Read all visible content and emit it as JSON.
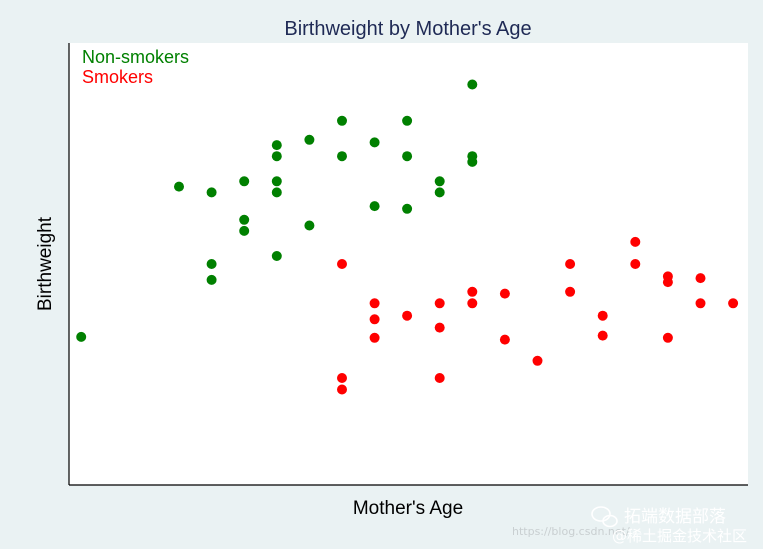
{
  "chart_data": {
    "type": "scatter",
    "title": "Birthweight by Mother's Age",
    "xlabel": "Mother's Age",
    "ylabel": "Birthweight",
    "xlim": [
      0,
      100
    ],
    "ylim": [
      0,
      100
    ],
    "grid": false,
    "legend_position": "top-left",
    "series": [
      {
        "name": "Non-smokers",
        "color": "#008000",
        "points": [
          [
            1.8,
            33.5
          ],
          [
            16.2,
            67.5
          ],
          [
            21.0,
            66.2
          ],
          [
            21.0,
            50.0
          ],
          [
            21.0,
            46.4
          ],
          [
            25.8,
            68.7
          ],
          [
            25.8,
            60.0
          ],
          [
            25.8,
            57.5
          ],
          [
            30.6,
            76.9
          ],
          [
            30.6,
            74.4
          ],
          [
            30.6,
            68.7
          ],
          [
            30.6,
            66.2
          ],
          [
            30.6,
            51.8
          ],
          [
            35.4,
            78.1
          ],
          [
            35.4,
            58.7
          ],
          [
            40.2,
            82.4
          ],
          [
            40.2,
            74.4
          ],
          [
            45.0,
            77.5
          ],
          [
            45.0,
            63.1
          ],
          [
            49.8,
            82.4
          ],
          [
            49.8,
            74.4
          ],
          [
            49.8,
            62.5
          ],
          [
            54.6,
            68.7
          ],
          [
            54.6,
            66.2
          ],
          [
            59.4,
            90.6
          ],
          [
            59.4,
            74.4
          ],
          [
            59.4,
            73.1
          ]
        ]
      },
      {
        "name": "Smokers",
        "color": "#ff0000",
        "points": [
          [
            40.2,
            50.0
          ],
          [
            40.2,
            24.2
          ],
          [
            40.2,
            21.6
          ],
          [
            45.0,
            41.1
          ],
          [
            45.0,
            37.5
          ],
          [
            45.0,
            33.3
          ],
          [
            49.8,
            38.3
          ],
          [
            54.6,
            41.1
          ],
          [
            54.6,
            35.6
          ],
          [
            54.6,
            24.2
          ],
          [
            59.4,
            43.7
          ],
          [
            59.4,
            41.1
          ],
          [
            64.2,
            43.3
          ],
          [
            64.2,
            32.9
          ],
          [
            69.0,
            28.1
          ],
          [
            73.8,
            50.0
          ],
          [
            73.8,
            43.7
          ],
          [
            78.6,
            38.3
          ],
          [
            78.6,
            33.8
          ],
          [
            83.4,
            55.0
          ],
          [
            83.4,
            50.0
          ],
          [
            88.2,
            47.2
          ],
          [
            88.2,
            45.9
          ],
          [
            88.2,
            33.3
          ],
          [
            93.0,
            46.8
          ],
          [
            93.0,
            41.1
          ],
          [
            97.8,
            41.1
          ]
        ]
      }
    ]
  },
  "watermark": {
    "brand": "拓端数据部落",
    "url": "https://blog.csdn.net/",
    "community": "@稀土掘金技术社区"
  }
}
